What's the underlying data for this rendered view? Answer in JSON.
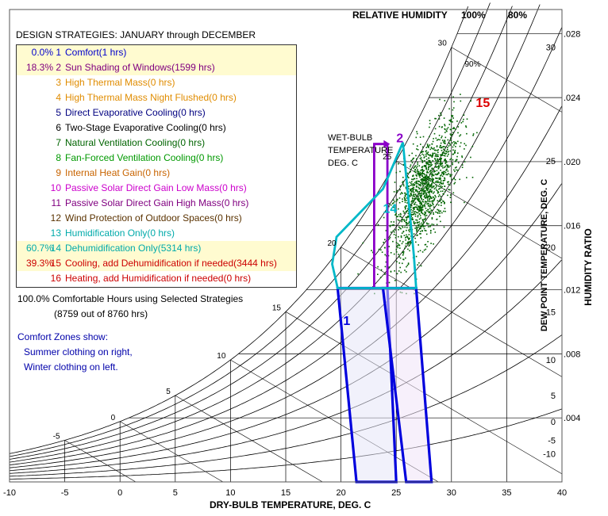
{
  "header": {
    "title": "DESIGN STRATEGIES:  JANUARY through DECEMBER",
    "rh_label": "RELATIVE HUMIDITY",
    "rh_100": "100%",
    "rh_80": "80%"
  },
  "strategies": [
    {
      "pct": "0.0%",
      "num": "1",
      "label": "Comfort(1 hrs)",
      "color": "#0000cc",
      "selected": true
    },
    {
      "pct": "18.3%",
      "num": "2",
      "label": "Sun Shading of Windows(1599 hrs)",
      "color": "#800080",
      "selected": true
    },
    {
      "pct": "",
      "num": "3",
      "label": "High Thermal Mass(0 hrs)",
      "color": "#e08c00",
      "selected": false
    },
    {
      "pct": "",
      "num": "4",
      "label": "High Thermal Mass Night Flushed(0 hrs)",
      "color": "#e08c00",
      "selected": false
    },
    {
      "pct": "",
      "num": "5",
      "label": "Direct Evaporative Cooling(0 hrs)",
      "color": "#000080",
      "selected": false
    },
    {
      "pct": "",
      "num": "6",
      "label": "Two-Stage Evaporative Cooling(0 hrs)",
      "color": "#000000",
      "selected": false
    },
    {
      "pct": "",
      "num": "7",
      "label": "Natural Ventilation Cooling(0 hrs)",
      "color": "#006400",
      "selected": false
    },
    {
      "pct": "",
      "num": "8",
      "label": "Fan-Forced Ventilation Cooling(0 hrs)",
      "color": "#009900",
      "selected": false
    },
    {
      "pct": "",
      "num": "9",
      "label": "Internal Heat Gain(0 hrs)",
      "color": "#c86400",
      "selected": false
    },
    {
      "pct": "",
      "num": "10",
      "label": "Passive Solar Direct Gain Low Mass(0 hrs)",
      "color": "#cc00cc",
      "selected": false
    },
    {
      "pct": "",
      "num": "11",
      "label": "Passive Solar Direct Gain High Mass(0 hrs)",
      "color": "#800080",
      "selected": false
    },
    {
      "pct": "",
      "num": "12",
      "label": "Wind Protection of Outdoor Spaces(0 hrs)",
      "color": "#5a3200",
      "selected": false
    },
    {
      "pct": "",
      "num": "13",
      "label": "Humidification Only(0 hrs)",
      "color": "#00aaaa",
      "selected": false
    },
    {
      "pct": "60.7%",
      "num": "14",
      "label": "Dehumidification Only(5314 hrs)",
      "color": "#00aaaa",
      "selected": true
    },
    {
      "pct": "39.3%",
      "num": "15",
      "label": "Cooling, add Dehumidification if needed(3444 hrs)",
      "color": "#cc0000",
      "selected": true
    },
    {
      "pct": "",
      "num": "16",
      "label": "Heating, add Humidification if needed(0 hrs)",
      "color": "#cc0000",
      "selected": false
    }
  ],
  "summary": {
    "line1": "100.0%  Comfortable Hours using Selected Strategies",
    "line2": "(8759 out of 8760 hrs)"
  },
  "comfort_note": {
    "title": "Comfort Zones show:",
    "line1": "Summer clothing on right,",
    "line2": "Winter clothing on left."
  },
  "wet_bulb_label": [
    "WET-BULB",
    "TEMPERATURE",
    "DEG. C"
  ],
  "colors": {
    "comfort_zone": "#0000dd",
    "comfort_fill": "#e6e6f8",
    "sun_shading": "#8a00c8",
    "dehumid": "#00b8c8",
    "cooling_label": "#dd0000",
    "points": "#006400",
    "highlight": "#fffbd0"
  },
  "chart_data": {
    "type": "psychrometric",
    "xlabel": "DRY-BULB TEMPERATURE, DEG. C",
    "ylabel_right": "HUMIDITY RATIO",
    "ylabel_dewpoint": "DEW POINT TEMPERATURE, DEG. C",
    "xlim": [
      -10,
      40
    ],
    "ylim": [
      0,
      0.0295
    ],
    "x_ticks": [
      "-10",
      "-5",
      "0",
      "5",
      "10",
      "15",
      "20",
      "25",
      "30",
      "35",
      "40"
    ],
    "x_tick_values": [
      -10,
      -5,
      0,
      5,
      10,
      15,
      20,
      25,
      30,
      35,
      40
    ],
    "humidity_ratio_ticks": [
      ".004",
      ".008",
      ".012",
      ".016",
      ".020",
      ".024",
      ".028"
    ],
    "humidity_ratio_values": [
      0.004,
      0.008,
      0.012,
      0.016,
      0.02,
      0.024,
      0.028
    ],
    "dew_point_ticks": [
      "-10",
      "-5",
      "0",
      "5",
      "10",
      "15",
      "20",
      "25",
      "30"
    ],
    "dew_point_values": [
      -10,
      -5,
      0,
      5,
      10,
      15,
      20,
      25,
      30
    ],
    "wet_bulb_ticks": [
      "-5",
      "0",
      "5",
      "10",
      "15",
      "20",
      "25",
      "30"
    ],
    "wet_bulb_values": [
      -5,
      0,
      5,
      10,
      15,
      20,
      25,
      30
    ],
    "rh_curves_percent": [
      10,
      20,
      30,
      40,
      50,
      60,
      70,
      80,
      90,
      100
    ],
    "rh_curve_labels": [
      {
        "rh": 100,
        "text": "100%"
      },
      {
        "rh": 80,
        "text": "80%"
      },
      {
        "rh": 90,
        "text": "90%"
      }
    ],
    "zones": [
      {
        "id": "1",
        "name": "Comfort (winter)",
        "polygon": [
          [
            19.7,
            0.0121
          ],
          [
            24.2,
            0.0121
          ],
          [
            25.0,
            0.0
          ],
          [
            21.4,
            0.0
          ]
        ]
      },
      {
        "id": "1",
        "name": "Comfort (summer)",
        "polygon": [
          [
            23.8,
            0.0121
          ],
          [
            26.8,
            0.0121
          ],
          [
            28.2,
            0.0
          ],
          [
            25.9,
            0.0
          ]
        ]
      },
      {
        "id": "2",
        "name": "Sun Shading",
        "polygon": [
          [
            23.0,
            0.0121
          ],
          [
            23.0,
            0.0211
          ],
          [
            24.2,
            0.0211
          ],
          [
            24.2,
            0.0121
          ]
        ]
      },
      {
        "id": "14",
        "name": "Dehumidification",
        "polygon": [
          [
            19.2,
            0.0136
          ],
          [
            19.6,
            0.0153
          ],
          [
            23.8,
            0.0183
          ],
          [
            25.6,
            0.0212
          ],
          [
            26.6,
            0.0141
          ],
          [
            26.8,
            0.0121
          ],
          [
            19.7,
            0.0121
          ]
        ]
      }
    ],
    "zone_labels": [
      {
        "text": "1",
        "x": 20.2,
        "y": 0.0098
      },
      {
        "text": "2",
        "x": 25.0,
        "y": 0.0212
      },
      {
        "text": "14",
        "x": 23.8,
        "y": 0.0168
      },
      {
        "text": "15",
        "x": 32.2,
        "y": 0.0234
      }
    ],
    "weather_points": {
      "count": 8760,
      "center": [
        27.5,
        0.0182
      ],
      "spread": [
        1.6,
        0.0022
      ],
      "range_x": [
        20.0,
        34.5
      ],
      "range_y": [
        0.0118,
        0.0262
      ]
    }
  }
}
